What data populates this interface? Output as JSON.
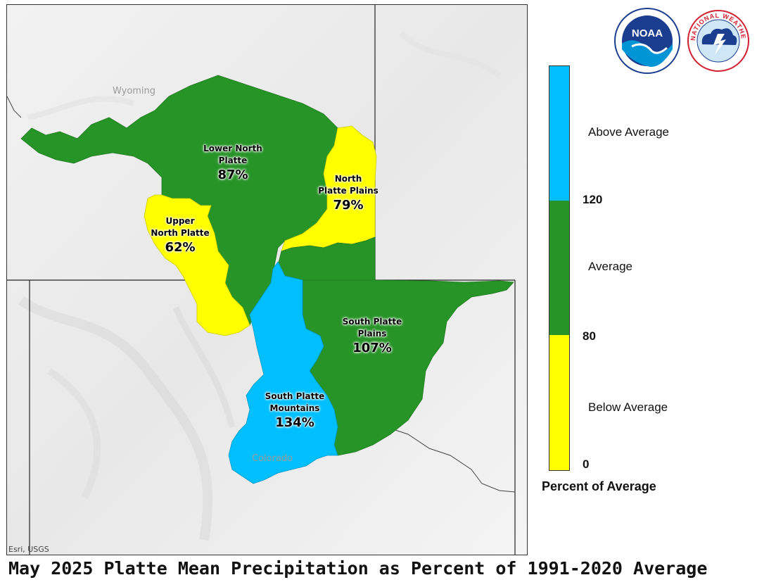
{
  "title": "May 2025 Platte Mean Precipitation as Percent of 1991-2020 Average",
  "map": {
    "attribution": "Esri, USGS",
    "state_labels": {
      "wyoming": "Wyoming",
      "colorado": "Colorado"
    },
    "basins": [
      {
        "id": "lower-north-platte",
        "name_line1": "Lower North",
        "name_line2": "Platte",
        "percent": "87%",
        "category": "Average",
        "color": "#279427"
      },
      {
        "id": "north-platte-plains",
        "name_line1": "North",
        "name_line2": "Platte Plains",
        "percent": "79%",
        "category": "Below Average",
        "color": "#ffff00"
      },
      {
        "id": "upper-north-platte",
        "name_line1": "Upper",
        "name_line2": "North Platte",
        "percent": "62%",
        "category": "Below Average",
        "color": "#ffff00"
      },
      {
        "id": "south-platte-plains",
        "name_line1": "South Platte",
        "name_line2": "Plains",
        "percent": "107%",
        "category": "Average",
        "color": "#279427"
      },
      {
        "id": "south-platte-mountains",
        "name_line1": "South Platte",
        "name_line2": "Mountains",
        "percent": "134%",
        "category": "Above Average",
        "color": "#00bfff"
      }
    ]
  },
  "legend": {
    "title": "Percent of Average",
    "categories": [
      {
        "label": "Above Average",
        "color": "#00bfff",
        "range": [
          120,
          null
        ]
      },
      {
        "label": "Average",
        "color": "#279427",
        "range": [
          80,
          120
        ]
      },
      {
        "label": "Below Average",
        "color": "#ffff00",
        "range": [
          0,
          80
        ]
      }
    ],
    "ticks": [
      "120",
      "80",
      "0"
    ]
  },
  "logos": {
    "noaa": {
      "center_text": "NOAA",
      "colors": {
        "primary": "#1a3d8f",
        "wave": "#0096d6"
      }
    },
    "nws": {
      "ring_text": "NATIONAL WEATHER SERVICE",
      "colors": {
        "primary": "#d22030",
        "cloud": "#1a3d8f"
      }
    }
  }
}
